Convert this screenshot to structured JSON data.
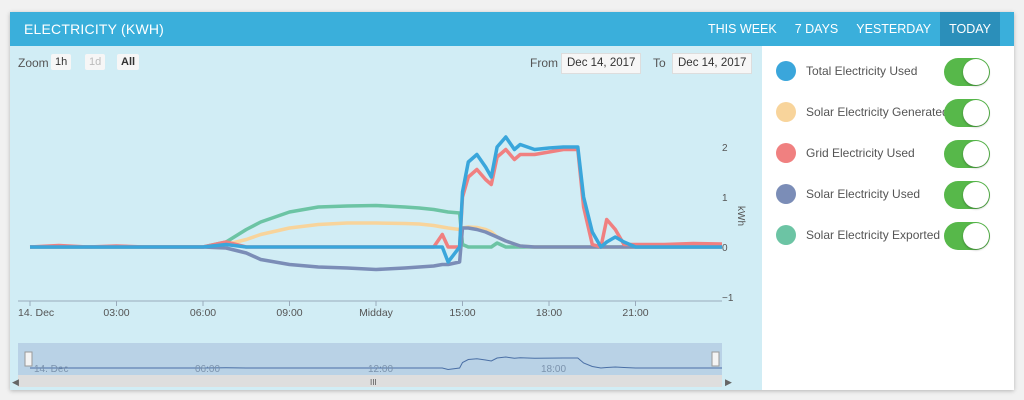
{
  "header": {
    "title": "ELECTRICITY (KWH)",
    "tabs": [
      {
        "label": "THIS WEEK",
        "active": false
      },
      {
        "label": "7 DAYS",
        "active": false
      },
      {
        "label": "YESTERDAY",
        "active": false
      },
      {
        "label": "TODAY",
        "active": true
      }
    ]
  },
  "toolbar": {
    "zoom_label": "Zoom",
    "zoom_buttons": [
      {
        "label": "1h",
        "enabled": true,
        "selected": false
      },
      {
        "label": "1d",
        "enabled": false,
        "selected": false
      },
      {
        "label": "All",
        "enabled": true,
        "selected": true
      }
    ],
    "from_label": "From",
    "from_value": "Dec 14, 2017",
    "to_label": "To",
    "to_value": "Dec 14, 2017"
  },
  "legend": [
    {
      "name": "Total Electricity Used",
      "color": "#3aa6db",
      "enabled": true
    },
    {
      "name": "Solar Electricity Generated",
      "color": "#f8d49b",
      "enabled": true
    },
    {
      "name": "Grid Electricity Used",
      "color": "#f08080",
      "enabled": true
    },
    {
      "name": "Solar Electricity Used",
      "color": "#7b8db7",
      "enabled": true
    },
    {
      "name": "Solar Electricity Exported",
      "color": "#6cc4a4",
      "enabled": true
    }
  ],
  "navigator": {
    "ticks": [
      "14. Dec",
      "06:00",
      "12:00",
      "18:00"
    ],
    "scroll_grip": "III"
  },
  "chart_data": {
    "type": "line",
    "xlabel": "",
    "ylabel": "kWh",
    "x_ticks": [
      "14. Dec",
      "03:00",
      "06:00",
      "09:00",
      "Midday",
      "15:00",
      "18:00",
      "21:00"
    ],
    "x_range_hours": [
      0,
      24
    ],
    "y_ticks": [
      -1,
      0,
      1,
      2
    ],
    "ylim": [
      -1.1,
      2.45
    ],
    "grid": false,
    "x_hours": [
      0,
      1,
      2,
      3,
      4,
      5,
      6,
      6.8,
      7.5,
      8,
      9,
      10,
      11,
      12,
      13,
      13.5,
      14,
      14.3,
      14.5,
      14.9,
      15.0,
      15.2,
      15.5,
      15.8,
      16.0,
      16.2,
      16.5,
      16.8,
      17.0,
      17.5,
      18.0,
      18.5,
      19.0,
      19.2,
      19.5,
      19.8,
      20.0,
      20.3,
      20.6,
      21.0,
      22.0,
      23.0,
      24.0
    ],
    "series": [
      {
        "name": "Total Electricity Used",
        "values": [
          0,
          0,
          0,
          0,
          0,
          0,
          0,
          0.05,
          0,
          0,
          0,
          0,
          0,
          0,
          0,
          0,
          0,
          0,
          -0.3,
          0,
          1.1,
          1.7,
          1.85,
          1.6,
          1.4,
          2.0,
          2.2,
          1.95,
          2.05,
          1.95,
          1.98,
          2.0,
          2.0,
          1.0,
          0.3,
          0,
          0.1,
          0.2,
          0.1,
          0,
          0,
          0,
          0
        ]
      },
      {
        "name": "Solar Electricity Generated",
        "values": [
          0,
          0,
          0,
          0,
          0,
          0,
          0,
          0.05,
          0.15,
          0.25,
          0.38,
          0.45,
          0.48,
          0.48,
          0.47,
          0.46,
          0.43,
          0.4,
          0.38,
          0.35,
          0.38,
          0.4,
          0.39,
          0.35,
          0.3,
          0.2,
          0.12,
          0.06,
          0.02,
          0,
          0,
          0,
          0,
          0,
          0,
          0,
          0,
          0,
          0,
          0,
          0,
          0,
          0
        ]
      },
      {
        "name": "Grid Electricity Used",
        "values": [
          0,
          0.03,
          0,
          0.02,
          0,
          0,
          0,
          0.1,
          0,
          0,
          0,
          0,
          0,
          0,
          0,
          0,
          0,
          0.25,
          0,
          0,
          1.0,
          1.4,
          1.55,
          1.35,
          1.25,
          1.8,
          1.95,
          1.75,
          1.85,
          1.85,
          1.9,
          1.95,
          1.95,
          0.8,
          0.05,
          0,
          0.55,
          0.35,
          0.05,
          0.05,
          0.05,
          0.07,
          0.06
        ]
      },
      {
        "name": "Solar Electricity Used",
        "values": [
          0,
          0,
          0,
          0,
          0,
          0,
          0,
          -0.02,
          -0.12,
          -0.25,
          -0.35,
          -0.4,
          -0.42,
          -0.45,
          -0.42,
          -0.4,
          -0.38,
          -0.35,
          -0.35,
          -0.3,
          0.38,
          0.38,
          0.35,
          0.3,
          0.25,
          0.2,
          0.12,
          0.06,
          0.02,
          0,
          0,
          0,
          0,
          0,
          0,
          0,
          0,
          0,
          0,
          0,
          0,
          0,
          0
        ]
      },
      {
        "name": "Solar Electricity Exported",
        "values": [
          0,
          0,
          0,
          0,
          0,
          0,
          0,
          0.1,
          0.35,
          0.5,
          0.7,
          0.8,
          0.82,
          0.83,
          0.8,
          0.78,
          0.75,
          0.72,
          0.7,
          0.68,
          0.05,
          0,
          0,
          0,
          0,
          0.08,
          0,
          0,
          0,
          0,
          0,
          0,
          0,
          0,
          0,
          0,
          0,
          0,
          0,
          0,
          0,
          0,
          0
        ]
      }
    ]
  }
}
